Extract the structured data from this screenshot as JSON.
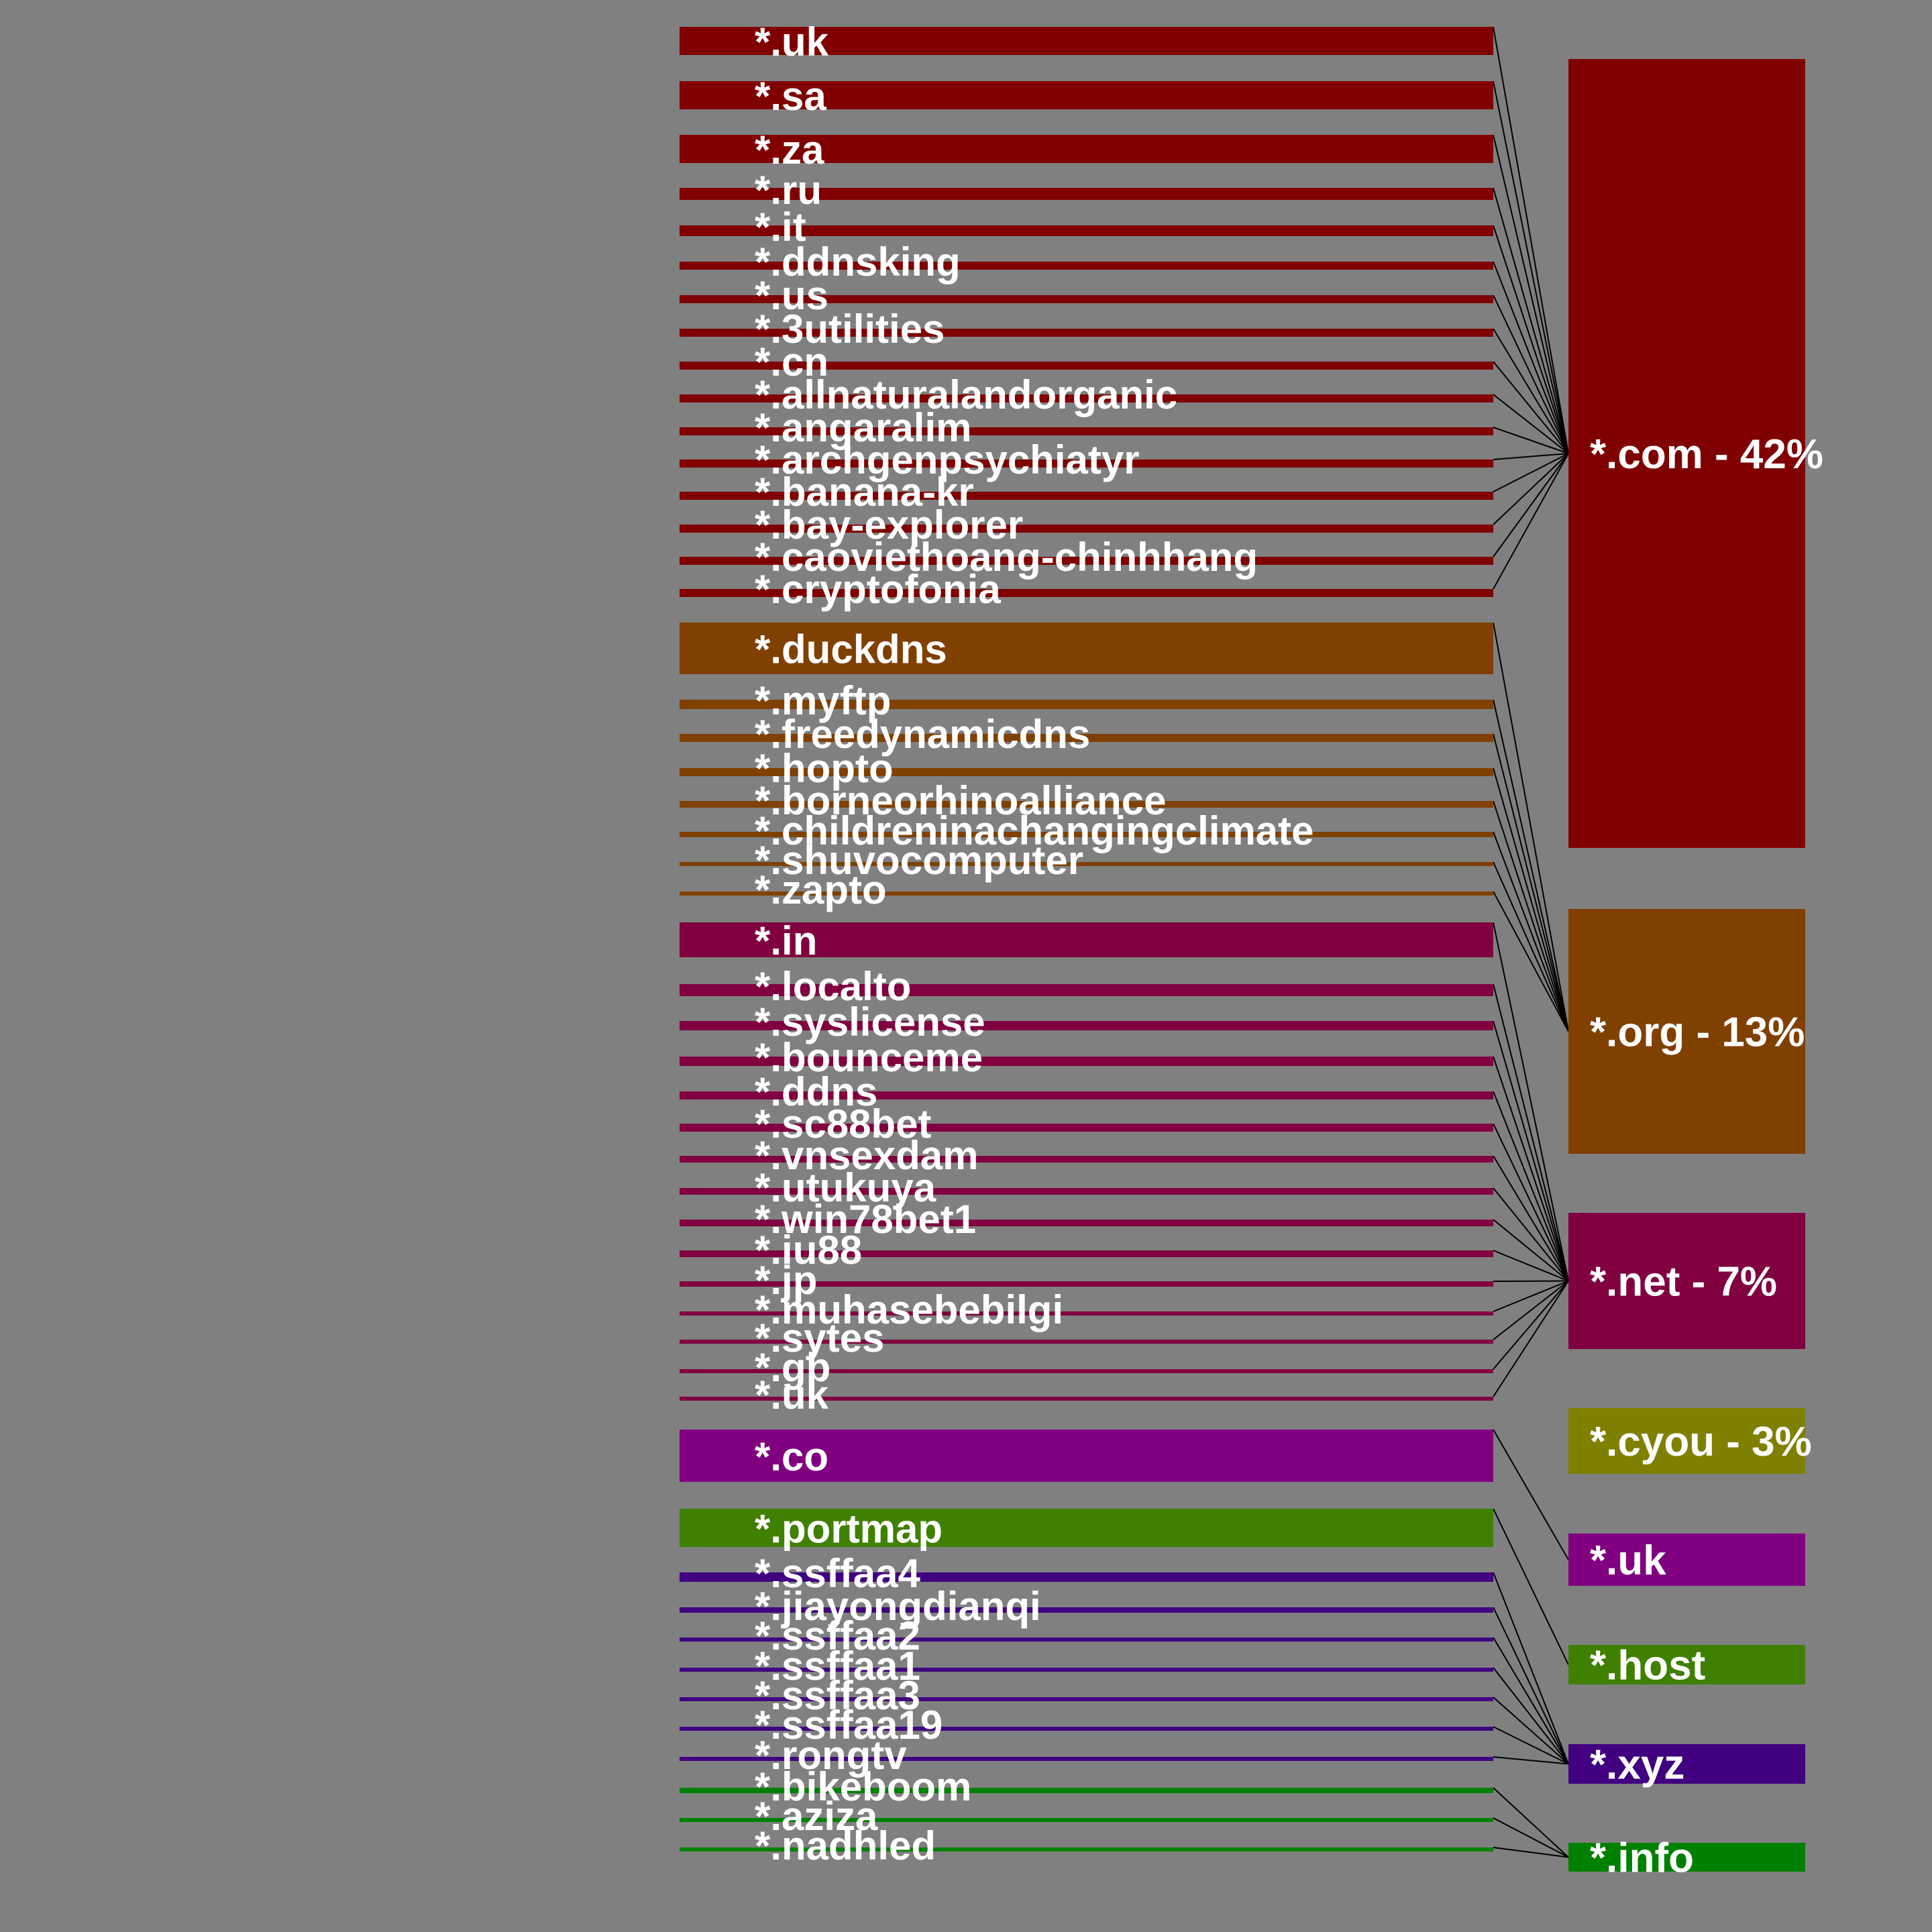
{
  "colors": {
    "background": "#808080",
    "com": "#800000",
    "org": "#804000",
    "net": "#800040",
    "cyou": "#808000",
    "uk": "#800080",
    "host": "#408000",
    "xyz": "#400080",
    "info": "#008000",
    "connector": "#000000",
    "label": "#ffffff"
  },
  "targets": [
    {
      "id": "com",
      "label": "*.com - 42%"
    },
    {
      "id": "org",
      "label": "*.org - 13%"
    },
    {
      "id": "net",
      "label": "*.net - 7%"
    },
    {
      "id": "cyou",
      "label": "*.cyou - 3%"
    },
    {
      "id": "uk",
      "label": "*.uk"
    },
    {
      "id": "host",
      "label": "*.host"
    },
    {
      "id": "xyz",
      "label": "*.xyz"
    },
    {
      "id": "info",
      "label": "*.info"
    }
  ],
  "sources": [
    {
      "label": "*.uk",
      "target": "com"
    },
    {
      "label": "*.sa",
      "target": "com"
    },
    {
      "label": "*.za",
      "target": "com"
    },
    {
      "label": "*.ru",
      "target": "com"
    },
    {
      "label": "*.it",
      "target": "com"
    },
    {
      "label": "*.ddnsking",
      "target": "com"
    },
    {
      "label": "*.us",
      "target": "com"
    },
    {
      "label": "*.3utilities",
      "target": "com"
    },
    {
      "label": "*.cn",
      "target": "com"
    },
    {
      "label": "*.allnaturalandorganic",
      "target": "com"
    },
    {
      "label": "*.angaralim",
      "target": "com"
    },
    {
      "label": "*.archgenpsychiatyr",
      "target": "com"
    },
    {
      "label": "*.banana-kr",
      "target": "com"
    },
    {
      "label": "*.bay-explorer",
      "target": "com"
    },
    {
      "label": "*.caoviethoang-chinhhang",
      "target": "com"
    },
    {
      "label": "*.cryptofonia",
      "target": "com"
    },
    {
      "label": "*.duckdns",
      "target": "org"
    },
    {
      "label": "*.myftp",
      "target": "org"
    },
    {
      "label": "*.freedynamicdns",
      "target": "org"
    },
    {
      "label": "*.hopto",
      "target": "org"
    },
    {
      "label": "*.borneorhinoalliance",
      "target": "org"
    },
    {
      "label": "*.childreninachangingclimate",
      "target": "org"
    },
    {
      "label": "*.shuvocomputer",
      "target": "org"
    },
    {
      "label": "*.zapto",
      "target": "org"
    },
    {
      "label": "*.in",
      "target": "net"
    },
    {
      "label": "*.localto",
      "target": "net"
    },
    {
      "label": "*.syslicense",
      "target": "net"
    },
    {
      "label": "*.bounceme",
      "target": "net"
    },
    {
      "label": "*.ddns",
      "target": "net"
    },
    {
      "label": "*.sc88bet",
      "target": "net"
    },
    {
      "label": "*.vnsexdam",
      "target": "net"
    },
    {
      "label": "*.utukuya",
      "target": "net"
    },
    {
      "label": "*.win78bet1",
      "target": "net"
    },
    {
      "label": "*.iu88",
      "target": "net"
    },
    {
      "label": "*.jp",
      "target": "net"
    },
    {
      "label": "*.muhasebebilgi",
      "target": "net"
    },
    {
      "label": "*.sytes",
      "target": "net"
    },
    {
      "label": "*.gb",
      "target": "net"
    },
    {
      "label": "*.uk",
      "target": "net"
    },
    {
      "label": "*.co",
      "target": "uk"
    },
    {
      "label": "*.portmap",
      "target": "host"
    },
    {
      "label": "*.ssffaa4",
      "target": "xyz"
    },
    {
      "label": "*.jiayongdianqi",
      "target": "xyz"
    },
    {
      "label": "*.ssffaa2",
      "target": "xyz"
    },
    {
      "label": "*.ssffaa1",
      "target": "xyz"
    },
    {
      "label": "*.ssffaa3",
      "target": "xyz"
    },
    {
      "label": "*.ssffaa19",
      "target": "xyz"
    },
    {
      "label": "*.rongtv",
      "target": "xyz"
    },
    {
      "label": "*.bikeboom",
      "target": "info"
    },
    {
      "label": "*.aziza",
      "target": "info"
    },
    {
      "label": "*.nadhled",
      "target": "info"
    }
  ]
}
